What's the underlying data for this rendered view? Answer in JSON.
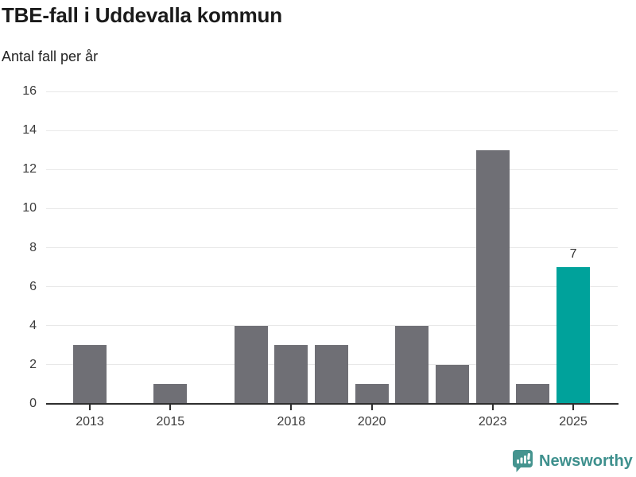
{
  "header": {
    "title": "TBE-fall i Uddevalla kommun",
    "subtitle": "Antal fall per år"
  },
  "footer": {
    "brand": "Newsworthy",
    "brand_color": "#3e908d",
    "icon_color": "#45948f",
    "icon_name": "newsworthy-bar-chart-bubble-icon"
  },
  "chart_data": {
    "type": "bar",
    "title": "TBE-fall i Uddevalla kommun",
    "subtitle": "Antal fall per år",
    "ylabel": "Antal fall per år",
    "xlabel": "",
    "categories": [
      2013,
      2014,
      2015,
      2016,
      2017,
      2018,
      2019,
      2020,
      2021,
      2022,
      2023,
      2024,
      2025
    ],
    "values": [
      3,
      0,
      1,
      0,
      4,
      3,
      3,
      1,
      4,
      2,
      13,
      1,
      7
    ],
    "highlight_index": 12,
    "highlight_value_label": "7",
    "xticks": [
      2013,
      2015,
      2018,
      2020,
      2023,
      2025
    ],
    "yticks": [
      0,
      2,
      4,
      6,
      8,
      10,
      12,
      14,
      16
    ],
    "ylim": [
      0,
      16
    ],
    "grid": true,
    "legend": null,
    "colors": {
      "bar": "#6f6f75",
      "highlight": "#00a29b",
      "gridline": "#e8e8e8",
      "axis": "#2e2e2e",
      "tick_text": "#3b3b3b"
    }
  }
}
